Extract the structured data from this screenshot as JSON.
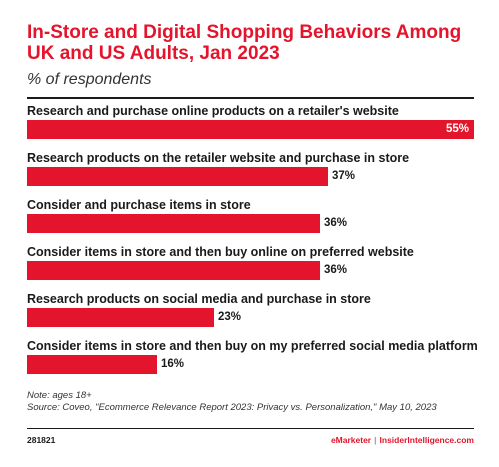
{
  "header": {
    "title": "In-Store and Digital Shopping Behaviors Among UK and US Adults, Jan 2023",
    "subtitle": "% of respondents"
  },
  "chart_data": {
    "type": "bar",
    "orientation": "horizontal",
    "title": "In-Store and Digital Shopping Behaviors Among UK and US Adults, Jan 2023",
    "subtitle": "% of respondents",
    "categories": [
      "Research and purchase online products on a retailer's website",
      "Research products on the retailer website and purchase in store",
      "Consider and purchase items in store",
      "Consider items in store and then buy online on preferred website",
      "Research products on social media and purchase in store",
      "Consider items in store and then buy on my preferred social media platform"
    ],
    "values": [
      55,
      37,
      36,
      36,
      23,
      16
    ],
    "value_labels": [
      "55%",
      "37%",
      "36%",
      "36%",
      "23%",
      "16%"
    ],
    "xlim": [
      0,
      55
    ],
    "grid": false,
    "bar_color": "#e3142b"
  },
  "footer": {
    "note": "Note: ages 18+",
    "source": "Source: Coveo, \"Ecommerce Relevance Report 2023: Privacy vs. Personalization,\" May 10, 2023",
    "chart_id": "281821",
    "brand_left": "eMarketer",
    "brand_sep": "|",
    "brand_right": "InsiderIntelligence.com"
  },
  "colors": {
    "accent": "#e3142b",
    "text": "#1a1a1a"
  }
}
